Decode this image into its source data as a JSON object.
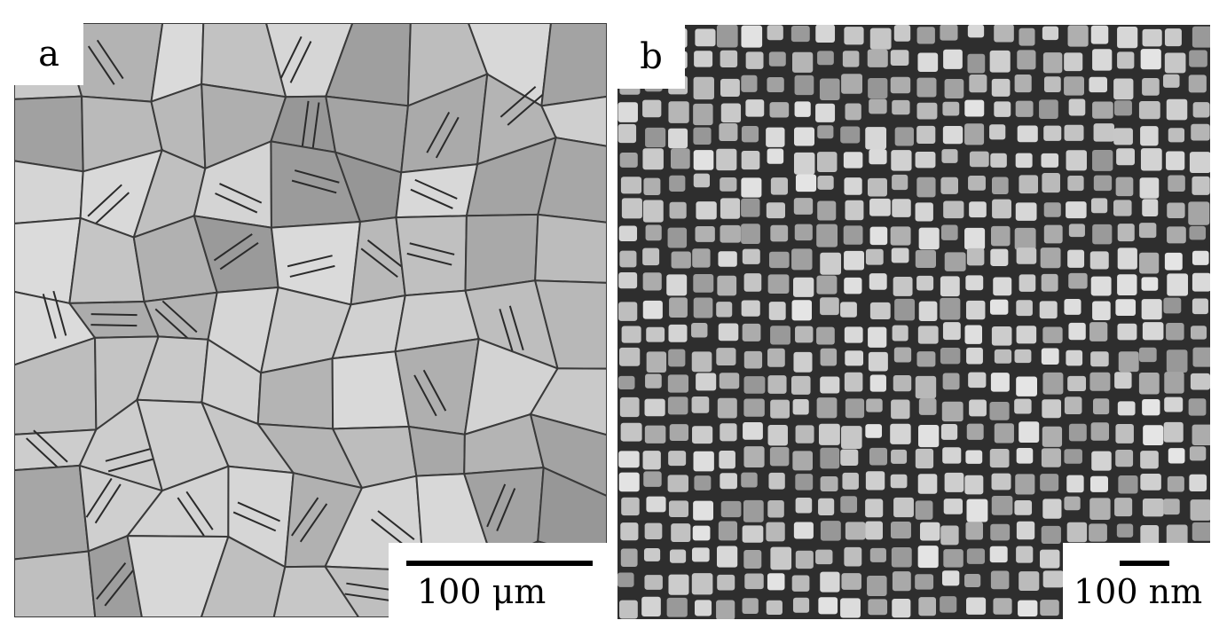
{
  "panels": {
    "a": {
      "label": "a",
      "scale_bar_text": "100 μm",
      "description_icon": "optical-micrograph-grains"
    },
    "b": {
      "label": "b",
      "scale_bar_text": "100 nm",
      "description_icon": "electron-micrograph-cuboids"
    }
  },
  "colors": {
    "background": "#ffffff",
    "label_box": "#ffffff",
    "scale_bar": "#000000",
    "panel_a_base": "#b4b4b4",
    "panel_b_base": "#5a5a5a"
  }
}
